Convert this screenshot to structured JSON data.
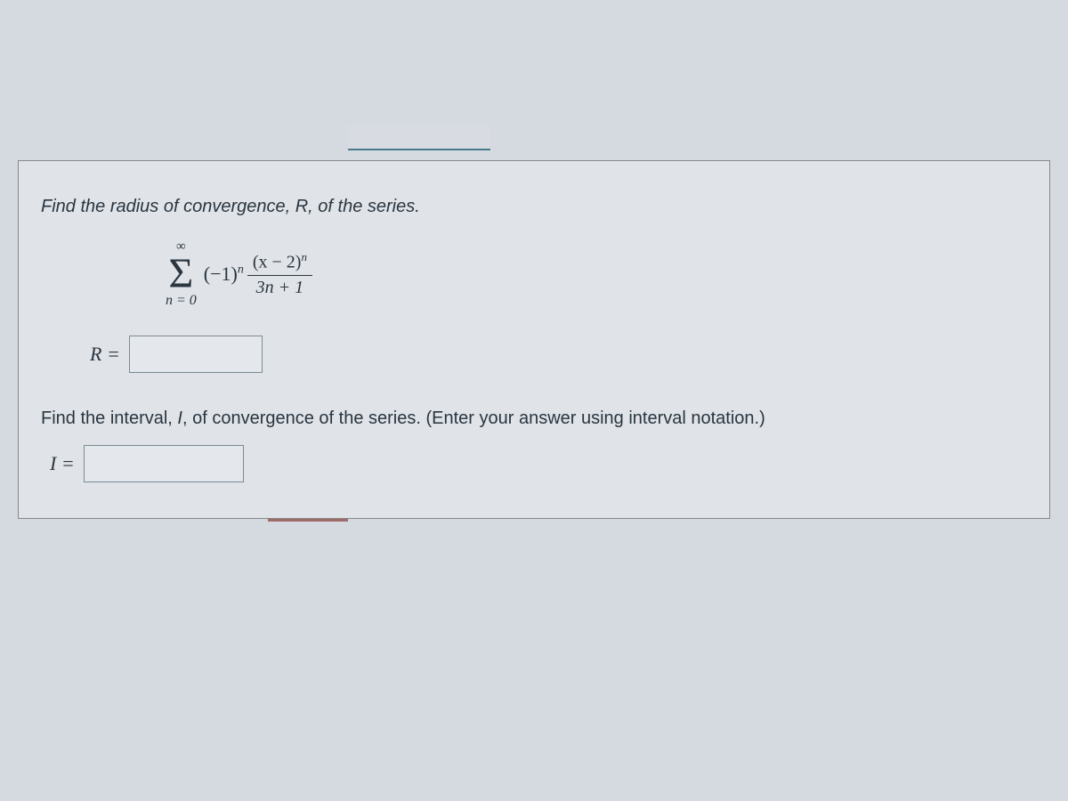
{
  "prompt1": "Find the radius of convergence, R, of the series.",
  "series": {
    "upper_limit": "∞",
    "sigma": "Σ",
    "lower_limit": "n = 0",
    "coefficient_base": "(−1)",
    "coefficient_exp": "n",
    "numerator_base": "(x − 2)",
    "numerator_exp": "n",
    "denominator": "3n + 1"
  },
  "answer1": {
    "label": "R =",
    "value": ""
  },
  "prompt2_pre": "Find the interval, ",
  "prompt2_var": "I",
  "prompt2_post": ", of convergence of the series. (Enter your answer using interval notation.)",
  "answer2": {
    "label": "I =",
    "value": ""
  },
  "colors": {
    "background": "#d4dae0",
    "panel_bg": "#e0e4e8",
    "text": "#2a3540",
    "input_border": "#7a8a95",
    "underline": "#4a7a8a"
  },
  "typography": {
    "body_font": "Segoe UI, Arial, sans-serif",
    "math_font": "Times New Roman, serif",
    "prompt_fontsize": 20,
    "sigma_fontsize": 48,
    "term_fontsize": 22
  }
}
